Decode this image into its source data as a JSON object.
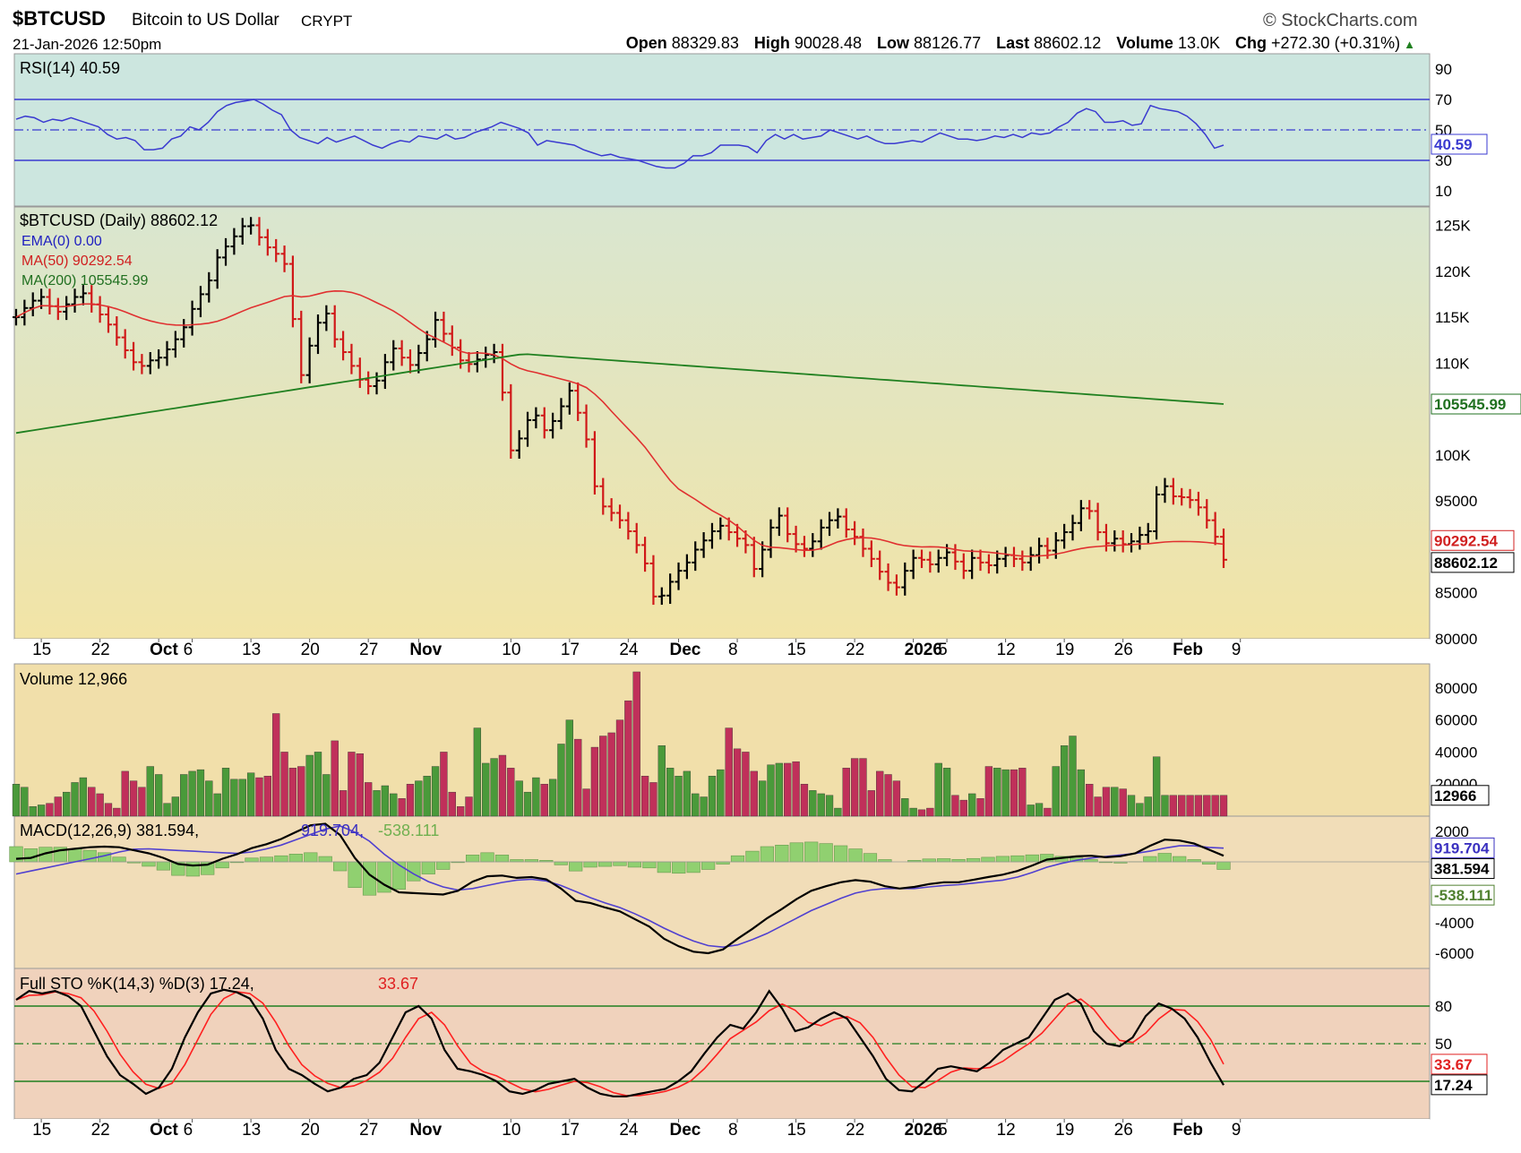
{
  "header": {
    "symbol": "$BTCUSD",
    "name": "Bitcoin to US Dollar",
    "type": "CRYPT",
    "datetime": "21-Jan-2026 12:50pm",
    "logo": "StockCharts.com",
    "open_label": "Open",
    "open": "88329.83",
    "high_label": "High",
    "high": "90028.48",
    "low_label": "Low",
    "low": "88126.77",
    "last_label": "Last",
    "last": "88602.12",
    "volume_label": "Volume",
    "volume": "13.0K",
    "chg_label": "Chg",
    "chg": "+272.30 (+0.31%)"
  },
  "colors": {
    "up": "#000000",
    "down": "#d01818",
    "vol_up": "#4a9a3a",
    "vol_down": "#c0305a",
    "ma50": "#e03030",
    "ma200": "#208020",
    "rsi": "#3a3ad0",
    "macd_signal": "#5040d0",
    "hist": "#90d070",
    "stoch_d": "#ff2020"
  },
  "chart_data": [
    {
      "type": "line",
      "panel": "RSI",
      "legend": "RSI(14) 40.59",
      "current_label": "40.59",
      "ylim": [
        0,
        100
      ],
      "yticks": [
        "90",
        "70",
        "50",
        "30",
        "10"
      ],
      "ytick_values": [
        90,
        70,
        50,
        30,
        10
      ],
      "reference_lines": [
        70,
        50,
        30
      ],
      "values": [
        57,
        59,
        58,
        55,
        57,
        56,
        58,
        56,
        54,
        52,
        47,
        44,
        45,
        43,
        37,
        37,
        38,
        44,
        46,
        52,
        50,
        55,
        62,
        66,
        68,
        69,
        70,
        67,
        63,
        60,
        50,
        45,
        43,
        41,
        45,
        42,
        44,
        46,
        43,
        40,
        38,
        41,
        43,
        42,
        46,
        45,
        44,
        47,
        44,
        45,
        48,
        50,
        52,
        55,
        53,
        51,
        48,
        40,
        43,
        42,
        41,
        40,
        37,
        35,
        33,
        34,
        32,
        31,
        30,
        28,
        26,
        25,
        25,
        28,
        33,
        33,
        35,
        40,
        40,
        40,
        39,
        35,
        43,
        47,
        44,
        47,
        44,
        45,
        46,
        50,
        48,
        46,
        44,
        46,
        43,
        41,
        41,
        42,
        43,
        42,
        45,
        48,
        46,
        44,
        44,
        43,
        44,
        46,
        45,
        47,
        45,
        48,
        47,
        48,
        52,
        55,
        61,
        64,
        62,
        55,
        55,
        56,
        53,
        54,
        66,
        64,
        63,
        62,
        59,
        54,
        47,
        38,
        40
      ]
    },
    {
      "type": "ohlc",
      "panel": "Price",
      "legend_title": "$BTCUSD (Daily) 88602.12",
      "legend_ema": "EMA(0) 0.00",
      "legend_ma50": "MA(50) 90292.54",
      "legend_ma200": "MA(200) 105545.99",
      "label_ma200": "105545.99",
      "label_ma50": "90292.54",
      "label_last": "88602.12",
      "ylim": [
        80000,
        127000
      ],
      "yticks": [
        "125K",
        "120K",
        "115K",
        "110K",
        "100K",
        "95000",
        "85000",
        "80000"
      ],
      "ytick_values": [
        125000,
        120000,
        115000,
        110000,
        100000,
        95000,
        85000,
        80000
      ],
      "close": [
        115000,
        116000,
        116800,
        117200,
        116200,
        115600,
        116400,
        117200,
        117600,
        116400,
        115300,
        114200,
        112800,
        111400,
        110100,
        109700,
        110300,
        110600,
        111500,
        112600,
        113900,
        115900,
        117500,
        119000,
        121500,
        122700,
        123800,
        124900,
        125000,
        123700,
        122600,
        121900,
        120800,
        114800,
        108700,
        111900,
        114400,
        115400,
        112600,
        111200,
        109700,
        108200,
        107500,
        108100,
        110100,
        111600,
        110600,
        109800,
        111100,
        112600,
        114700,
        113200,
        111700,
        110300,
        109900,
        110400,
        110900,
        111200,
        106800,
        100500,
        101800,
        103800,
        104300,
        102700,
        103700,
        105300,
        107000,
        104600,
        101700,
        96600,
        94400,
        93700,
        92900,
        91700,
        90200,
        88200,
        84600,
        84700,
        86200,
        87400,
        88300,
        89700,
        90700,
        91700,
        92300,
        91600,
        90900,
        90200,
        87600,
        89700,
        92100,
        93400,
        91400,
        90300,
        89800,
        90600,
        92100,
        92900,
        93300,
        91900,
        91100,
        89800,
        88700,
        87300,
        86100,
        85600,
        87400,
        88800,
        88600,
        88100,
        88800,
        89400,
        88400,
        87400,
        88800,
        88300,
        88000,
        88700,
        89100,
        88700,
        88300,
        89100,
        90100,
        89600,
        90700,
        91600,
        92600,
        94200,
        93900,
        91600,
        90400,
        90900,
        90300,
        90600,
        91300,
        91700,
        95700,
        96600,
        95500,
        95400,
        95100,
        94300,
        92900,
        91100,
        88600
      ]
    },
    {
      "type": "bar",
      "panel": "Volume",
      "legend": "Volume 12,966",
      "current_label": "12966",
      "ylim": [
        0,
        95000
      ],
      "yticks": [
        "80000",
        "60000",
        "40000",
        "20000"
      ],
      "ytick_values": [
        80000,
        60000,
        40000,
        20000
      ],
      "values": [
        20000,
        18000,
        6000,
        7000,
        8000,
        12000,
        15000,
        21000,
        24000,
        18000,
        14000,
        8000,
        5000,
        28000,
        22000,
        18000,
        31000,
        26000,
        8000,
        12000,
        26000,
        28000,
        29000,
        22000,
        14000,
        30000,
        23000,
        23000,
        27000,
        24000,
        25000,
        64000,
        40000,
        30000,
        31000,
        38000,
        40000,
        26000,
        47000,
        16000,
        40000,
        39000,
        21000,
        16000,
        19000,
        14000,
        11000,
        20000,
        22000,
        25000,
        31000,
        40000,
        15000,
        6000,
        12000,
        55000,
        33000,
        36000,
        38000,
        30000,
        22000,
        15000,
        24000,
        20000,
        23000,
        45000,
        60000,
        48000,
        17000,
        43000,
        50000,
        52000,
        60000,
        72000,
        90000,
        25000,
        21000,
        44000,
        30000,
        25000,
        28000,
        14000,
        12000,
        25000,
        29000,
        55000,
        42000,
        40000,
        28000,
        22000,
        32000,
        33000,
        33000,
        34000,
        20000,
        16000,
        14000,
        13000,
        5000,
        30000,
        36000,
        36000,
        16000,
        28000,
        26000,
        22000,
        11000,
        5000,
        4000,
        5000,
        33000,
        30000,
        13000,
        10000,
        14000,
        11000,
        31000,
        30000,
        29000,
        29000,
        30000,
        7000,
        8000,
        5000,
        31000,
        44000,
        50000,
        29000,
        20000,
        12000,
        18000,
        18000,
        17000,
        13000,
        8000,
        12000,
        37000,
        13000,
        13000,
        13000,
        13000,
        13000,
        13000,
        13000,
        13000
      ]
    },
    {
      "type": "line",
      "panel": "MACD",
      "legend_prefix": "MACD(12,26,9) 381.594,",
      "legend_signal": "919.704,",
      "legend_hist": "-538.111",
      "label_signal": "919.704",
      "label_macd": "381.594",
      "label_hist": "-538.111",
      "ylim": [
        -7000,
        3000
      ],
      "yticks": [
        "2000",
        "-2000",
        "-4000",
        "-6000"
      ],
      "ytick_values": [
        2000,
        -2000,
        -4000,
        -6000
      ],
      "zero_line": 0,
      "macd": [
        200,
        260,
        560,
        760,
        860,
        960,
        1000,
        960,
        760,
        560,
        260,
        -140,
        -240,
        -190,
        200,
        500,
        900,
        1160,
        1500,
        1960,
        2400,
        2500,
        1760,
        260,
        -840,
        -1500,
        -2000,
        -2050,
        -2100,
        -2150,
        -1900,
        -1300,
        -950,
        -900,
        -1050,
        -1000,
        -1150,
        -1750,
        -2550,
        -2700,
        -3000,
        -3250,
        -3750,
        -4250,
        -5050,
        -5550,
        -5900,
        -6000,
        -5750,
        -5050,
        -4400,
        -3700,
        -3100,
        -2450,
        -1900,
        -1600,
        -1340,
        -1200,
        -1300,
        -1600,
        -1750,
        -1650,
        -1460,
        -1340,
        -1340,
        -1180,
        -1000,
        -840,
        -600,
        -240,
        150,
        260,
        360,
        400,
        300,
        370,
        560,
        1050,
        1460,
        1400,
        1200,
        800,
        400
      ],
      "signal": [
        -800,
        -600,
        -400,
        -200,
        0,
        200,
        400,
        650,
        830,
        850,
        800,
        750,
        700,
        650,
        600,
        550,
        650,
        850,
        1100,
        1450,
        1800,
        2150,
        2350,
        1950,
        1350,
        500,
        -200,
        -800,
        -1300,
        -1650,
        -1850,
        -1750,
        -1550,
        -1350,
        -1200,
        -1150,
        -1250,
        -1550,
        -1950,
        -2350,
        -2700,
        -3000,
        -3400,
        -3850,
        -4350,
        -4800,
        -5200,
        -5500,
        -5600,
        -5450,
        -5100,
        -4700,
        -4200,
        -3700,
        -3200,
        -2800,
        -2400,
        -2050,
        -1850,
        -1750,
        -1750,
        -1750,
        -1650,
        -1550,
        -1500,
        -1400,
        -1300,
        -1200,
        -1000,
        -700,
        -350,
        -100,
        100,
        250,
        350,
        450,
        550,
        700,
        900,
        1050,
        1050,
        950,
        900
      ]
    },
    {
      "type": "line",
      "panel": "Full STO",
      "legend_prefix": "Full STO %K(14,3) %D(3) 17.24,",
      "legend_d": "33.67",
      "label_d": "33.67",
      "label_k": "17.24",
      "ylim": [
        -10,
        110
      ],
      "yticks": [
        "80",
        "50"
      ],
      "ytick_values": [
        80,
        50
      ],
      "reference_lines": [
        80,
        50,
        20
      ],
      "k": [
        85,
        92,
        90,
        92,
        88,
        80,
        60,
        40,
        25,
        18,
        10,
        15,
        30,
        55,
        75,
        90,
        93,
        91,
        86,
        70,
        45,
        30,
        25,
        18,
        12,
        15,
        22,
        25,
        35,
        55,
        75,
        80,
        70,
        45,
        30,
        28,
        25,
        20,
        12,
        10,
        13,
        18,
        20,
        22,
        15,
        10,
        8,
        8,
        10,
        12,
        14,
        20,
        28,
        42,
        55,
        65,
        62,
        75,
        92,
        78,
        60,
        63,
        70,
        75,
        70,
        55,
        40,
        22,
        13,
        12,
        20,
        30,
        32,
        30,
        28,
        35,
        45,
        50,
        55,
        70,
        85,
        90,
        82,
        60,
        50,
        48,
        55,
        72,
        82,
        78,
        70,
        55,
        35,
        17
      ]
    }
  ],
  "x_axis": {
    "labels": [
      "15",
      "22",
      "Oct",
      "6",
      "13",
      "20",
      "27",
      "Nov",
      "10",
      "17",
      "24",
      "Dec",
      "8",
      "15",
      "22",
      "2026",
      "5",
      "12",
      "19",
      "26",
      "Feb",
      "9"
    ],
    "bold": [
      false,
      false,
      true,
      false,
      false,
      false,
      false,
      true,
      false,
      false,
      false,
      true,
      false,
      false,
      false,
      true,
      false,
      false,
      false,
      false,
      true,
      false
    ]
  }
}
